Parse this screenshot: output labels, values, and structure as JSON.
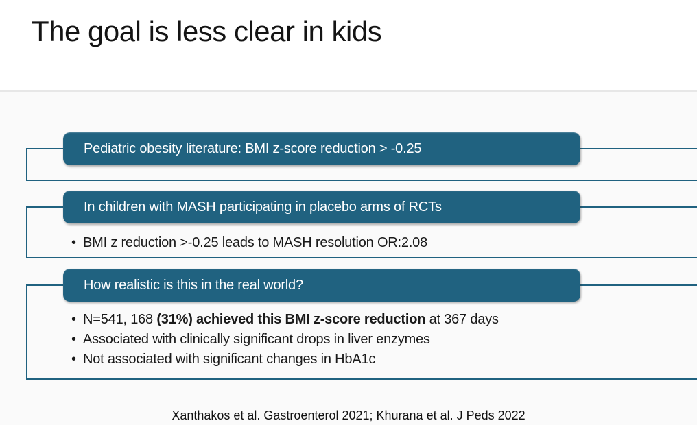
{
  "title": "The goal is less clear in kids",
  "colors": {
    "accent": "#206280",
    "page_bg": "#fafafa",
    "title_bg": "#ffffff",
    "divider": "#e7e7e7",
    "text": "#1a1a1a"
  },
  "bullet_char": "•",
  "sections": [
    {
      "id": "pediatric-literature",
      "header": "Pediatric obesity literature: BMI z-score reduction > -0.25",
      "bullets": []
    },
    {
      "id": "mash-placebo-rcts",
      "header": "In children with MASH participating in placebo arms of RCTs",
      "bullets": [
        {
          "text": "BMI z reduction >-0.25 leads to MASH resolution OR:2.08"
        }
      ]
    },
    {
      "id": "real-world",
      "header": "How realistic is this in the real world?",
      "bullets": [
        {
          "pre": "N=541, 168 ",
          "bold": "(31%) achieved this BMI z-score reduction",
          "post": " at 367 days"
        },
        {
          "text": "Associated with clinically significant drops in liver enzymes"
        },
        {
          "text": "Not associated with significant changes in HbA1c"
        }
      ]
    }
  ],
  "footer": "Xanthakos et al. Gastroenterol 2021; Khurana et al. J Peds 2022"
}
